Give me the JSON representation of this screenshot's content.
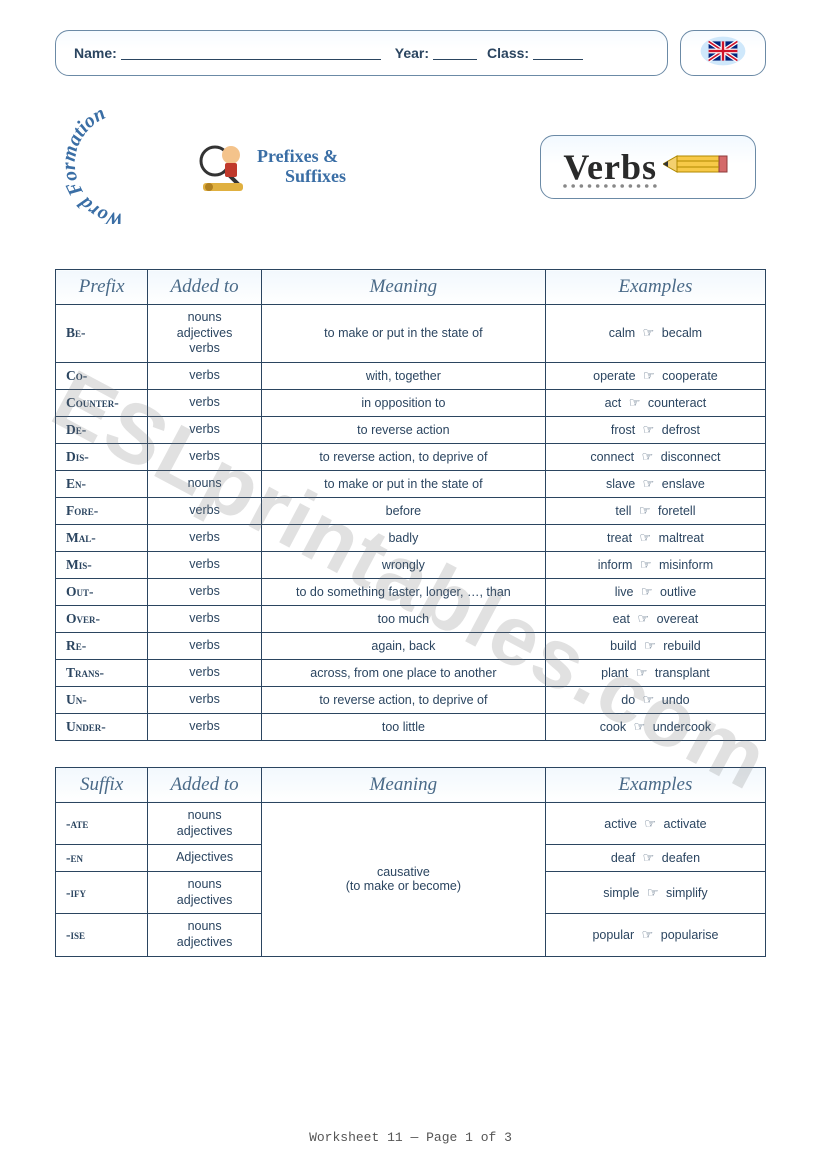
{
  "header": {
    "name_label": "Name:",
    "year_label": "Year:",
    "class_label": "Class:"
  },
  "logo": {
    "word_formation": "Word Formation",
    "prefixes_line1": "Prefixes &",
    "prefixes_line2": "Suffixes"
  },
  "verbs_title": "Verbs",
  "prefix_table": {
    "headers": {
      "col0": "Prefix",
      "col1": "Added to",
      "col2": "Meaning",
      "col3": "Examples"
    },
    "rows": [
      {
        "affix": "Be-",
        "added": "nouns\nadjectives\nverbs",
        "meaning": "to make or put in the state of",
        "ex_from": "calm",
        "ex_to": "becalm"
      },
      {
        "affix": "Co-",
        "added": "verbs",
        "meaning": "with, together",
        "ex_from": "operate",
        "ex_to": "cooperate"
      },
      {
        "affix": "Counter-",
        "added": "verbs",
        "meaning": "in opposition to",
        "ex_from": "act",
        "ex_to": "counteract"
      },
      {
        "affix": "De-",
        "added": "verbs",
        "meaning": "to reverse action",
        "ex_from": "frost",
        "ex_to": "defrost"
      },
      {
        "affix": "Dis-",
        "added": "verbs",
        "meaning": "to reverse action, to deprive of",
        "ex_from": "connect",
        "ex_to": "disconnect"
      },
      {
        "affix": "En-",
        "added": "nouns",
        "meaning": "to make or put in the state of",
        "ex_from": "slave",
        "ex_to": "enslave"
      },
      {
        "affix": "Fore-",
        "added": "verbs",
        "meaning": "before",
        "ex_from": "tell",
        "ex_to": "foretell"
      },
      {
        "affix": "Mal-",
        "added": "verbs",
        "meaning": "badly",
        "ex_from": "treat",
        "ex_to": "maltreat"
      },
      {
        "affix": "Mis-",
        "added": "verbs",
        "meaning": "wrongly",
        "ex_from": "inform",
        "ex_to": "misinform"
      },
      {
        "affix": "Out-",
        "added": "verbs",
        "meaning": "to do something faster, longer, …, than",
        "ex_from": "live",
        "ex_to": "outlive"
      },
      {
        "affix": "Over-",
        "added": "verbs",
        "meaning": "too much",
        "ex_from": "eat",
        "ex_to": "overeat"
      },
      {
        "affix": "Re-",
        "added": "verbs",
        "meaning": "again, back",
        "ex_from": "build",
        "ex_to": "rebuild"
      },
      {
        "affix": "Trans-",
        "added": "verbs",
        "meaning": "across, from one place to another",
        "ex_from": "plant",
        "ex_to": "transplant"
      },
      {
        "affix": "Un-",
        "added": "verbs",
        "meaning": "to reverse action, to deprive of",
        "ex_from": "do",
        "ex_to": "undo"
      },
      {
        "affix": "Under-",
        "added": "verbs",
        "meaning": "too little",
        "ex_from": "cook",
        "ex_to": "undercook"
      }
    ]
  },
  "suffix_table": {
    "headers": {
      "col0": "Suffix",
      "col1": "Added to",
      "col2": "Meaning",
      "col3": "Examples"
    },
    "meaning_merged": "causative\n(to make or become)",
    "rows": [
      {
        "affix": "-ate",
        "added": "nouns\nadjectives",
        "ex_from": "active",
        "ex_to": "activate"
      },
      {
        "affix": "-en",
        "added": "Adjectives",
        "ex_from": "deaf",
        "ex_to": "deafen"
      },
      {
        "affix": "-ify",
        "added": "nouns\nadjectives",
        "ex_from": "simple",
        "ex_to": "simplify"
      },
      {
        "affix": "-ise",
        "added": "nouns\nadjectives",
        "ex_from": "popular",
        "ex_to": "popularise"
      }
    ]
  },
  "footer": "Worksheet 11 — Page 1 of 3",
  "watermark": "ESLprintables.com",
  "colors": {
    "border": "#2b4560",
    "header_text": "#4a6a88",
    "box_border": "#6b8aa6",
    "body_text": "#2b4560",
    "background": "#ffffff"
  }
}
